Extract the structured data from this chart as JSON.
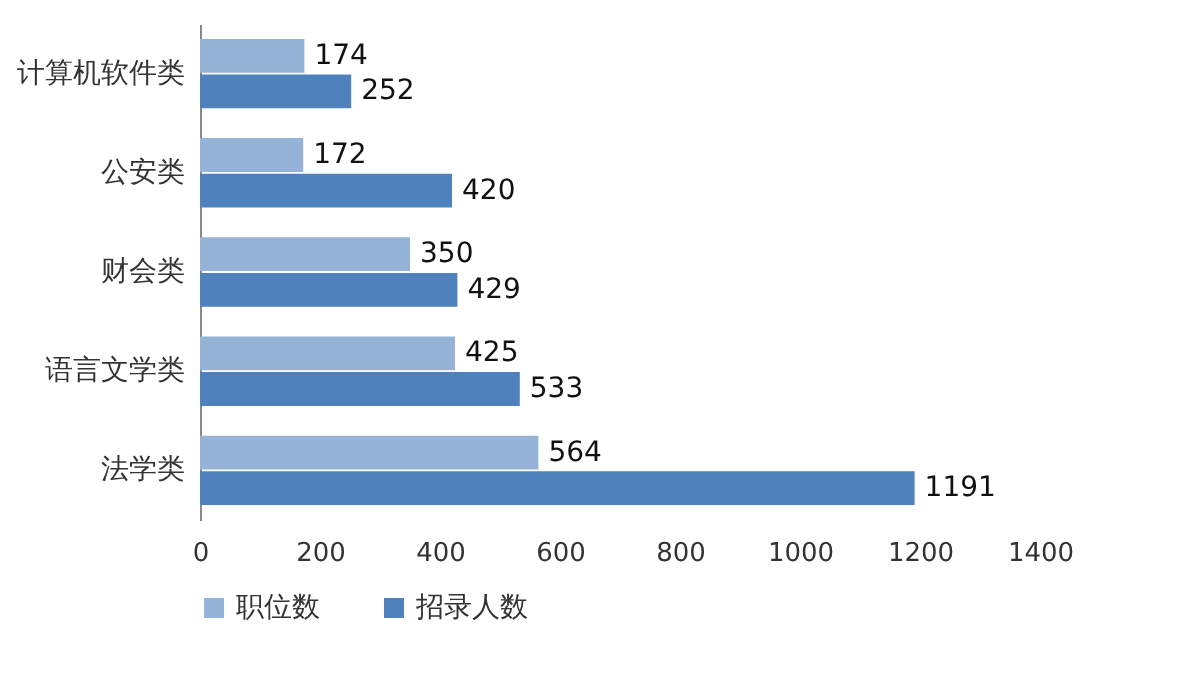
{
  "chart_data": {
    "type": "bar",
    "orientation": "horizontal",
    "categories": [
      "计算机软件类",
      "公安类",
      "财会类",
      "语言文学类",
      "法学类"
    ],
    "series": [
      {
        "name": "职位数",
        "color": "#95b3d7",
        "values": [
          174,
          172,
          350,
          425,
          564
        ]
      },
      {
        "name": "招录人数",
        "color": "#4f81bd",
        "values": [
          252,
          420,
          429,
          533,
          1191
        ]
      }
    ],
    "xlim": [
      0,
      1400
    ],
    "xticks": [
      0,
      200,
      400,
      600,
      800,
      1000,
      1200,
      1400
    ],
    "grid": false,
    "legend": "bottom",
    "data_labels": true
  }
}
